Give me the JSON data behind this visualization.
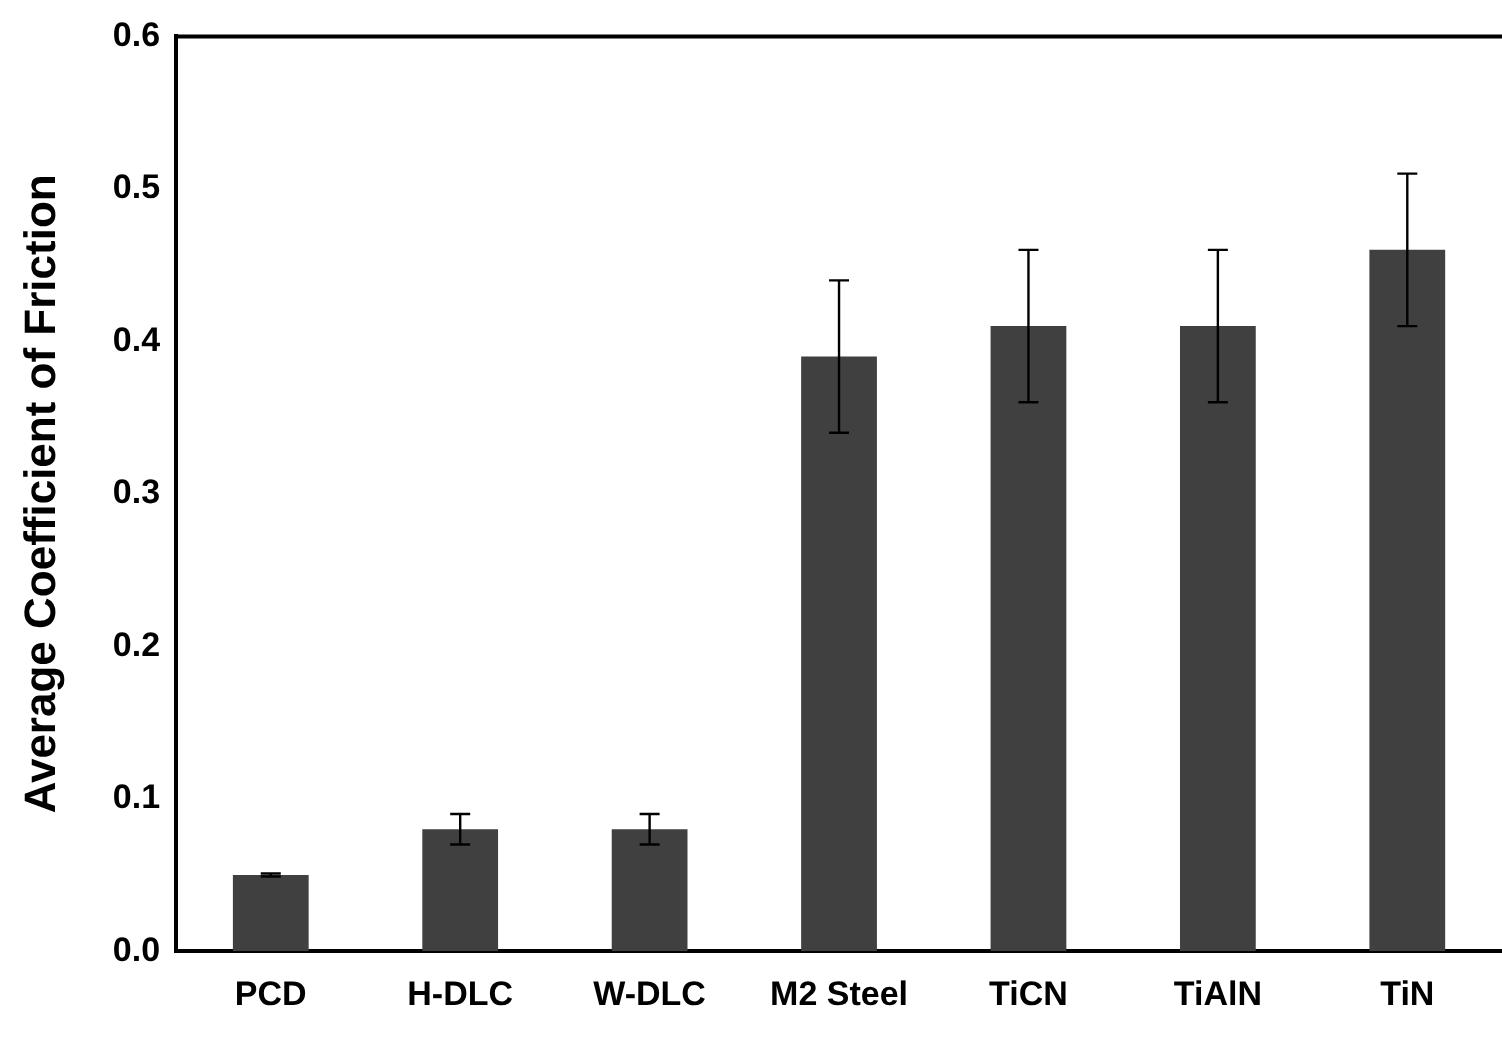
{
  "chart_data": {
    "type": "bar",
    "ylabel": "Average Coefficient of Friction",
    "categories": [
      "PCD",
      "H-DLC",
      "W-DLC",
      "M2 Steel",
      "TiCN",
      "TiAlN",
      "TiN"
    ],
    "values": [
      0.05,
      0.08,
      0.08,
      0.39,
      0.41,
      0.41,
      0.46
    ],
    "errors": [
      0.001,
      0.01,
      0.01,
      0.05,
      0.05,
      0.05,
      0.05
    ],
    "color": "#404040",
    "ylim": [
      0,
      0.6
    ],
    "yticks": [
      {
        "value": 0,
        "label": "0.0"
      },
      {
        "value": 0.1,
        "label": "0.1"
      },
      {
        "value": 0.2,
        "label": "0.2"
      },
      {
        "value": 0.3,
        "label": "0.3"
      },
      {
        "value": 0.4,
        "label": "0.4"
      },
      {
        "value": 0.5,
        "label": "0.5"
      },
      {
        "value": 0.6,
        "label": "0.6"
      }
    ],
    "grid": false,
    "legend": false
  }
}
